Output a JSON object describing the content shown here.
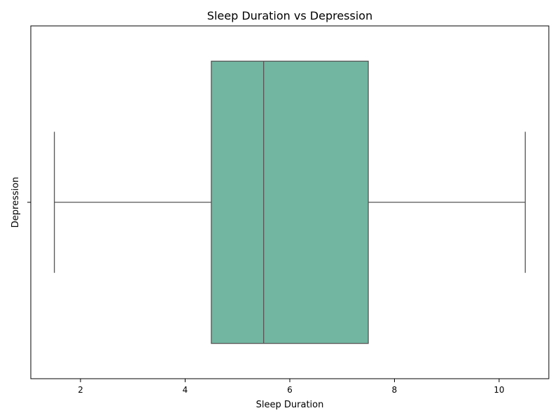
{
  "chart_data": {
    "type": "box",
    "title": "Sleep Duration vs Depression",
    "xlabel": "Sleep Duration",
    "ylabel": "Depression",
    "xlim": [
      1.05,
      10.95
    ],
    "x_ticks": [
      2,
      4,
      6,
      8,
      10
    ],
    "y_ticks": [
      ""
    ],
    "orientation": "horizontal",
    "box_color": "#72b6a1",
    "line_color": "#555555",
    "boxes": [
      {
        "category": "",
        "whisker_low": 1.5,
        "q1": 4.5,
        "median": 5.5,
        "q3": 7.5,
        "whisker_high": 10.5
      }
    ]
  }
}
